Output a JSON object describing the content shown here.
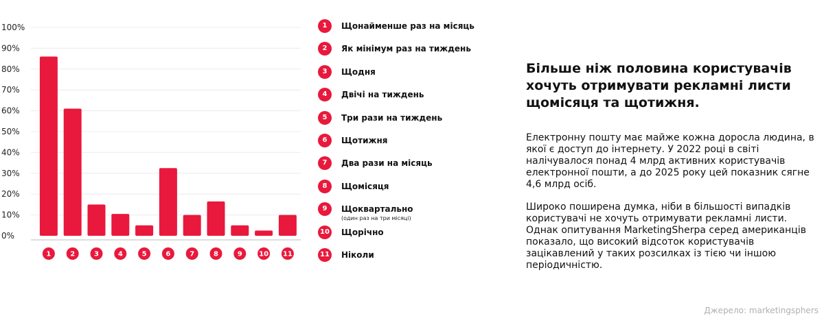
{
  "chart_data": {
    "type": "bar",
    "categories": [
      "1",
      "2",
      "3",
      "4",
      "5",
      "6",
      "7",
      "8",
      "9",
      "10",
      "11"
    ],
    "values": [
      86,
      61,
      15,
      10.5,
      5,
      32.5,
      10,
      16.5,
      5,
      2.5,
      10
    ],
    "yticks": [
      "0%",
      "10%",
      "20%",
      "30%",
      "40%",
      "50%",
      "60%",
      "70%",
      "80%",
      "90%",
      "100%"
    ],
    "ylim": [
      0,
      100
    ],
    "grid": true,
    "legend_position": "right",
    "bar_color": "#E8193C"
  },
  "legend": {
    "items": [
      {
        "num": "1",
        "label": "Щонайменше раз на місяць"
      },
      {
        "num": "2",
        "label": "Як мінімум раз на тиждень"
      },
      {
        "num": "3",
        "label": "Щодня"
      },
      {
        "num": "4",
        "label": "Двічі на тиждень"
      },
      {
        "num": "5",
        "label": "Три рази на тиждень"
      },
      {
        "num": "6",
        "label": "Щотижня"
      },
      {
        "num": "7",
        "label": "Два рази на місяць"
      },
      {
        "num": "8",
        "label": "Щомісяця"
      },
      {
        "num": "9",
        "label": "Щоквартально",
        "note": "(один раз на три місяці)"
      },
      {
        "num": "10",
        "label": "Щорічно"
      },
      {
        "num": "11",
        "label": "Ніколи"
      }
    ]
  },
  "text": {
    "headline": "Більше ніж половина користувачів хочуть отримувати рекламні листи щомісяця та щотижня.",
    "paragraph1": "Електронну пошту має майже кожна доросла людина, в якої є доступ до інтернету. У 2022 році в світі налічувалося понад 4 млрд активних користувачів електронної пошти, а до 2025 року цей показник сягне 4,6 млрд осіб.",
    "paragraph2": "Широко поширена думка, ніби в більшості випадків користувачі не хочуть отримувати рекламні листи. Однак опитування MarketingSherpa серед американців показало, що високий відсоток користувачів зацікавлений у таких розсилках із тією чи іншою періодичністю.",
    "source": "Джерело: marketingsphers"
  }
}
